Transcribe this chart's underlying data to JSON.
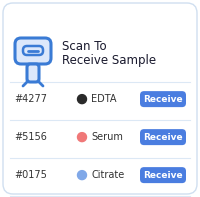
{
  "background_color": "#ffffff",
  "border_color": "#d0dff0",
  "title_line1": "Scan To",
  "title_line2": "Receive Sample",
  "title_color": "#1a1a2e",
  "title_fontsize": 8.5,
  "icon_color": "#3a7bd5",
  "icon_fill": "#dce8fb",
  "separator_color": "#dce8f5",
  "samples": [
    {
      "id": "#4277",
      "type": "EDTA",
      "dot_color": "#2a2a2a"
    },
    {
      "id": "#5156",
      "type": "Serum",
      "dot_color": "#f07878"
    },
    {
      "id": "#0175",
      "type": "Citrate",
      "dot_color": "#80a8e8"
    }
  ],
  "id_color": "#333333",
  "type_color": "#333333",
  "id_fontsize": 7.0,
  "type_fontsize": 7.0,
  "button_color": "#4a7de0",
  "button_text": "Receive",
  "button_text_color": "#ffffff",
  "button_fontsize": 6.5
}
